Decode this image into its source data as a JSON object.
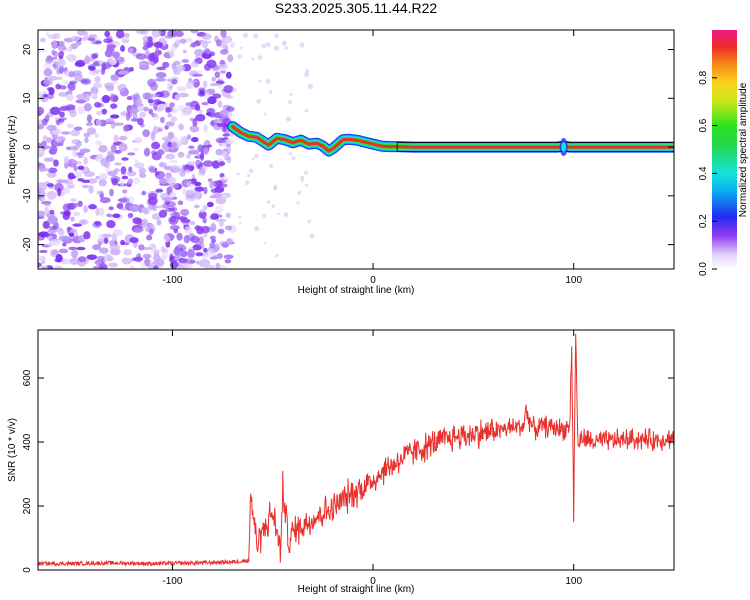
{
  "title": "S233.2025.305.11.44.R22",
  "colors": {
    "trace": "#e8302c",
    "ridge_center": "#e8302c",
    "background": "#ffffff",
    "noise_dark": "#7a2cf0",
    "noise_light": "#d9c2fb"
  },
  "chart_data": [
    {
      "type": "heatmap",
      "name": "spectrogram",
      "xlabel": "Height of straight line (km)",
      "ylabel": "Frequency (Hz)",
      "xlim": [
        -167,
        150
      ],
      "ylim": [
        -25,
        24
      ],
      "xticks": [
        -100,
        0,
        100
      ],
      "xtick_labels": [
        "-100",
        "0",
        "100"
      ],
      "yticks": [
        -20,
        -10,
        0,
        10,
        20
      ],
      "ytick_labels": [
        "-20",
        "-10",
        "0",
        "10",
        "20"
      ],
      "noise_region_x": [
        -167,
        -70
      ],
      "ridge": {
        "x": [
          -70,
          -66,
          -62,
          -58,
          -55,
          -52,
          -48,
          -44,
          -40,
          -36,
          -32,
          -28,
          -25,
          -22,
          -20,
          -18,
          -15,
          -12,
          -8,
          -4,
          0,
          4,
          8,
          12,
          20,
          40,
          60,
          80,
          92,
          95,
          98,
          110,
          130,
          150
        ],
        "freq": [
          4.2,
          3.0,
          2.2,
          2.0,
          1.2,
          0.4,
          1.8,
          1.5,
          0.9,
          1.4,
          0.6,
          0.8,
          0.2,
          -0.8,
          -0.3,
          0.4,
          1.5,
          1.6,
          1.4,
          1.0,
          0.6,
          0.2,
          0.1,
          0.1,
          0.0,
          0.0,
          0.0,
          0.0,
          0.0,
          0.2,
          0.0,
          0.0,
          0.0,
          0.0
        ]
      },
      "colorbar": {
        "label": "Normalized spectral amplitude",
        "range": [
          0.0,
          1.0
        ],
        "ticks": [
          0.0,
          0.2,
          0.4,
          0.6,
          0.8
        ],
        "tick_labels": [
          "0.0",
          "0.2",
          "0.4",
          "0.6",
          "0.8"
        ]
      }
    },
    {
      "type": "line",
      "name": "snr",
      "xlabel": "Height of straight line (km)",
      "ylabel": "SNR (10 * v/v)",
      "xlim": [
        -167,
        150
      ],
      "ylim": [
        0,
        750
      ],
      "xticks": [
        -100,
        0,
        100
      ],
      "xtick_labels": [
        "-100",
        "0",
        "100"
      ],
      "yticks": [
        0,
        200,
        400,
        600
      ],
      "ytick_labels": [
        "0",
        "200",
        "400",
        "600"
      ],
      "series": [
        {
          "name": "SNR",
          "x": [
            -167,
            -150,
            -130,
            -110,
            -90,
            -70,
            -62,
            -61,
            -58,
            -55,
            -50,
            -46,
            -45,
            -42,
            -40,
            -35,
            -30,
            -25,
            -20,
            -15,
            -10,
            -5,
            0,
            5,
            10,
            15,
            20,
            25,
            30,
            35,
            40,
            45,
            50,
            55,
            60,
            65,
            70,
            75,
            76,
            80,
            85,
            90,
            95,
            98,
            99,
            100,
            101,
            102,
            105,
            110,
            120,
            130,
            140,
            150
          ],
          "y": [
            20,
            20,
            22,
            20,
            22,
            25,
            30,
            240,
            80,
            120,
            180,
            60,
            260,
            80,
            120,
            140,
            160,
            180,
            190,
            220,
            240,
            260,
            280,
            310,
            330,
            350,
            370,
            380,
            395,
            405,
            415,
            420,
            425,
            430,
            435,
            440,
            445,
            450,
            500,
            440,
            450,
            445,
            440,
            450,
            700,
            170,
            760,
            400,
            410,
            400,
            405,
            410,
            405,
            415
          ]
        }
      ]
    }
  ]
}
